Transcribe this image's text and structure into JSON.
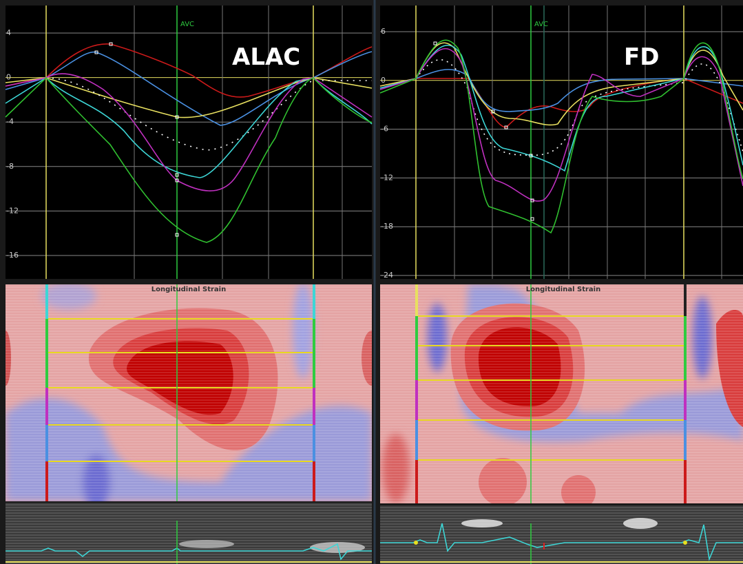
{
  "panels": [
    {
      "label": "ALAC",
      "marker": "AVC",
      "yticks": [
        4,
        0,
        -4,
        -8,
        -12,
        -16
      ],
      "map_title": "Longitudinal Strain"
    },
    {
      "label": "FD",
      "marker": "AVC",
      "yticks": [
        6,
        0,
        -6,
        -12,
        -18,
        -24
      ],
      "map_title": "Longitudinal Strain"
    }
  ]
}
